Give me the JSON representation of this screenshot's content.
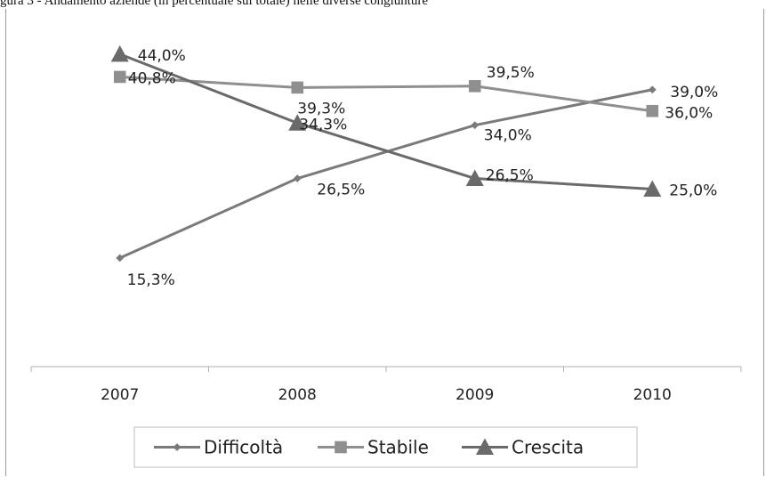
{
  "caption": "gura 3 - Andamento aziende (in percentuale sul totale) nelle diverse congiunture",
  "chart_data": {
    "type": "line",
    "categories": [
      "2007",
      "2008",
      "2009",
      "2010"
    ],
    "ylim": [
      0,
      50
    ],
    "grid": false,
    "legend_position": "bottom",
    "series": [
      {
        "name": "Difficoltà",
        "marker": "diamond",
        "color": "#7a7a7a",
        "values": [
          15.3,
          26.5,
          34.0,
          39.0
        ],
        "labels": [
          "15,3%",
          "26,5%",
          "34,0%",
          "39,0%"
        ]
      },
      {
        "name": "Stabile",
        "marker": "square",
        "color": "#8f8f8f",
        "values": [
          40.8,
          39.3,
          39.5,
          36.0
        ],
        "labels": [
          "40,8%",
          "39,3%",
          "39,5%",
          "36,0%"
        ]
      },
      {
        "name": "Crescita",
        "marker": "triangle",
        "color": "#6a6a6a",
        "values": [
          44.0,
          34.3,
          26.5,
          25.0
        ],
        "labels": [
          "44,0%",
          "34,3%",
          "26,5%",
          "25,0%"
        ]
      }
    ]
  }
}
